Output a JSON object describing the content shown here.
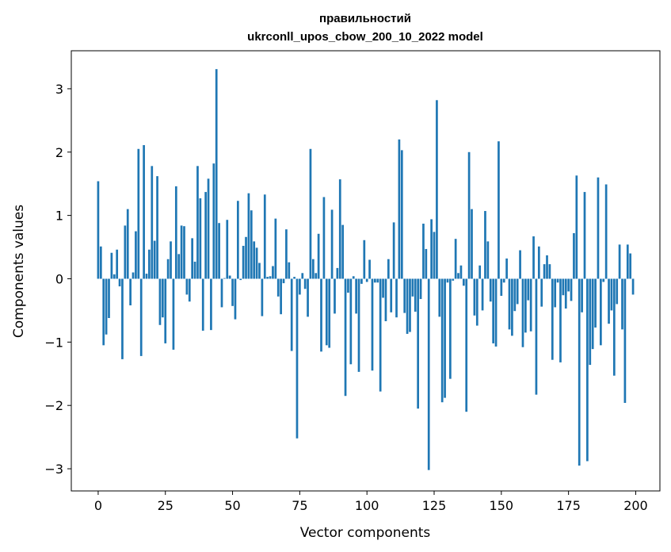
{
  "chart_data": {
    "type": "bar",
    "title_line1": "правильностий",
    "title_line2": "ukrconll_upos_cbow_200_10_2022 model",
    "xlabel": "Vector components",
    "ylabel": "Components values",
    "xlim": [
      -10,
      209
    ],
    "ylim": [
      -3.35,
      3.6
    ],
    "xticks": [
      0,
      25,
      50,
      75,
      100,
      125,
      150,
      175,
      200
    ],
    "yticks": [
      -3,
      -2,
      -1,
      0,
      1,
      2,
      3
    ],
    "ytick_labels": [
      "−3",
      "−2",
      "−1",
      "0",
      "1",
      "2",
      "3"
    ],
    "grid": false,
    "bar_color": "#1f77b4",
    "values": [
      1.54,
      0.51,
      -1.05,
      -0.88,
      -0.62,
      0.41,
      0.07,
      0.46,
      -0.12,
      -1.27,
      0.84,
      1.1,
      -0.42,
      0.1,
      0.75,
      2.05,
      -1.22,
      2.11,
      0.08,
      0.46,
      1.78,
      0.6,
      1.62,
      -0.73,
      -0.61,
      -1.02,
      0.31,
      0.59,
      -1.12,
      1.46,
      0.39,
      0.84,
      0.83,
      -0.25,
      -0.36,
      0.64,
      0.27,
      1.78,
      1.27,
      -0.82,
      1.37,
      1.58,
      -0.81,
      1.82,
      3.31,
      0.88,
      -0.45,
      0.01,
      0.93,
      0.05,
      -0.43,
      -0.64,
      1.23,
      -0.02,
      0.52,
      0.66,
      1.35,
      1.08,
      0.59,
      0.49,
      0.25,
      -0.59,
      1.33,
      0.03,
      0.04,
      0.2,
      0.95,
      -0.28,
      -0.56,
      -0.07,
      0.78,
      0.26,
      -1.14,
      0.03,
      -2.52,
      -0.25,
      0.09,
      -0.16,
      -0.6,
      2.05,
      0.31,
      0.09,
      0.71,
      -1.15,
      1.29,
      -1.05,
      -1.09,
      1.09,
      -0.55,
      0.17,
      1.57,
      0.85,
      -1.85,
      -0.22,
      -1.35,
      0.04,
      -0.55,
      -1.47,
      -0.08,
      0.61,
      -0.05,
      0.3,
      -1.45,
      -0.06,
      -0.06,
      -1.78,
      -0.3,
      -0.67,
      0.31,
      -0.53,
      0.89,
      -0.61,
      2.2,
      2.03,
      -0.54,
      -0.87,
      -0.84,
      -0.28,
      -0.52,
      -2.05,
      -0.32,
      0.87,
      0.47,
      -3.02,
      0.94,
      0.74,
      2.82,
      -0.6,
      -1.95,
      -1.88,
      -0.06,
      -1.58,
      -0.03,
      0.63,
      0.09,
      0.21,
      -0.11,
      -2.1,
      2.0,
      1.1,
      -0.58,
      -0.74,
      0.21,
      -0.5,
      1.07,
      0.59,
      -0.36,
      -1.02,
      -1.07,
      2.17,
      -0.27,
      -0.06,
      0.32,
      -0.8,
      -0.9,
      -0.51,
      -0.4,
      0.45,
      -1.08,
      -0.85,
      -0.34,
      -0.83,
      0.67,
      -1.83,
      0.51,
      -0.44,
      0.23,
      0.37,
      0.23,
      -1.28,
      -0.45,
      -0.06,
      -1.32,
      -0.26,
      -0.47,
      -0.2,
      -0.35,
      0.72,
      1.63,
      -2.95,
      -0.53,
      1.37,
      -2.88,
      -1.36,
      -1.11,
      -0.77,
      1.6,
      -1.05,
      -0.05,
      1.49,
      -0.71,
      -0.5,
      -1.53,
      -0.4,
      0.54,
      -0.8,
      -1.96,
      0.54,
      0.4,
      -0.25
    ]
  }
}
